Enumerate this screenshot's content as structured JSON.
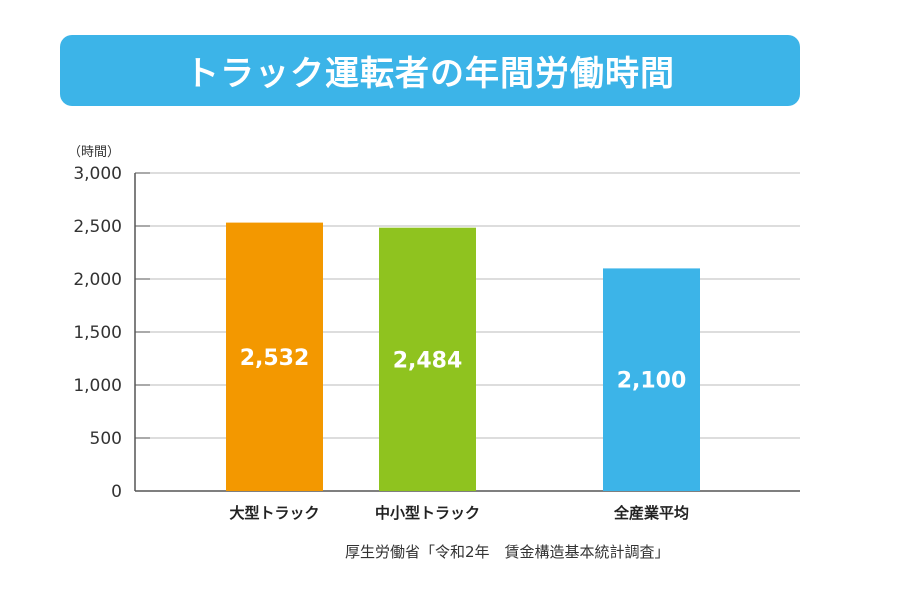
{
  "chart_data": {
    "type": "bar",
    "title": "トラック運転者の年間労働時間",
    "ylabel": "（時間）",
    "xlabel": "",
    "categories": [
      "大型トラック",
      "中小型トラック",
      "全産業平均"
    ],
    "values": [
      2532,
      2484,
      2100
    ],
    "data_labels": [
      "2,532",
      "2,484",
      "2,100"
    ],
    "colors": [
      "#f39800",
      "#8fc31f",
      "#3cb4e8"
    ],
    "ylim": [
      0,
      3000
    ],
    "yticks": [
      0,
      500,
      1000,
      1500,
      2000,
      2500,
      3000
    ],
    "ytick_labels": [
      "0",
      "500",
      "1,000",
      "1,500",
      "2,000",
      "2,500",
      "3,000"
    ],
    "grid": true,
    "source": "厚生労働省「令和2年　賃金構造基本統計調査」"
  }
}
